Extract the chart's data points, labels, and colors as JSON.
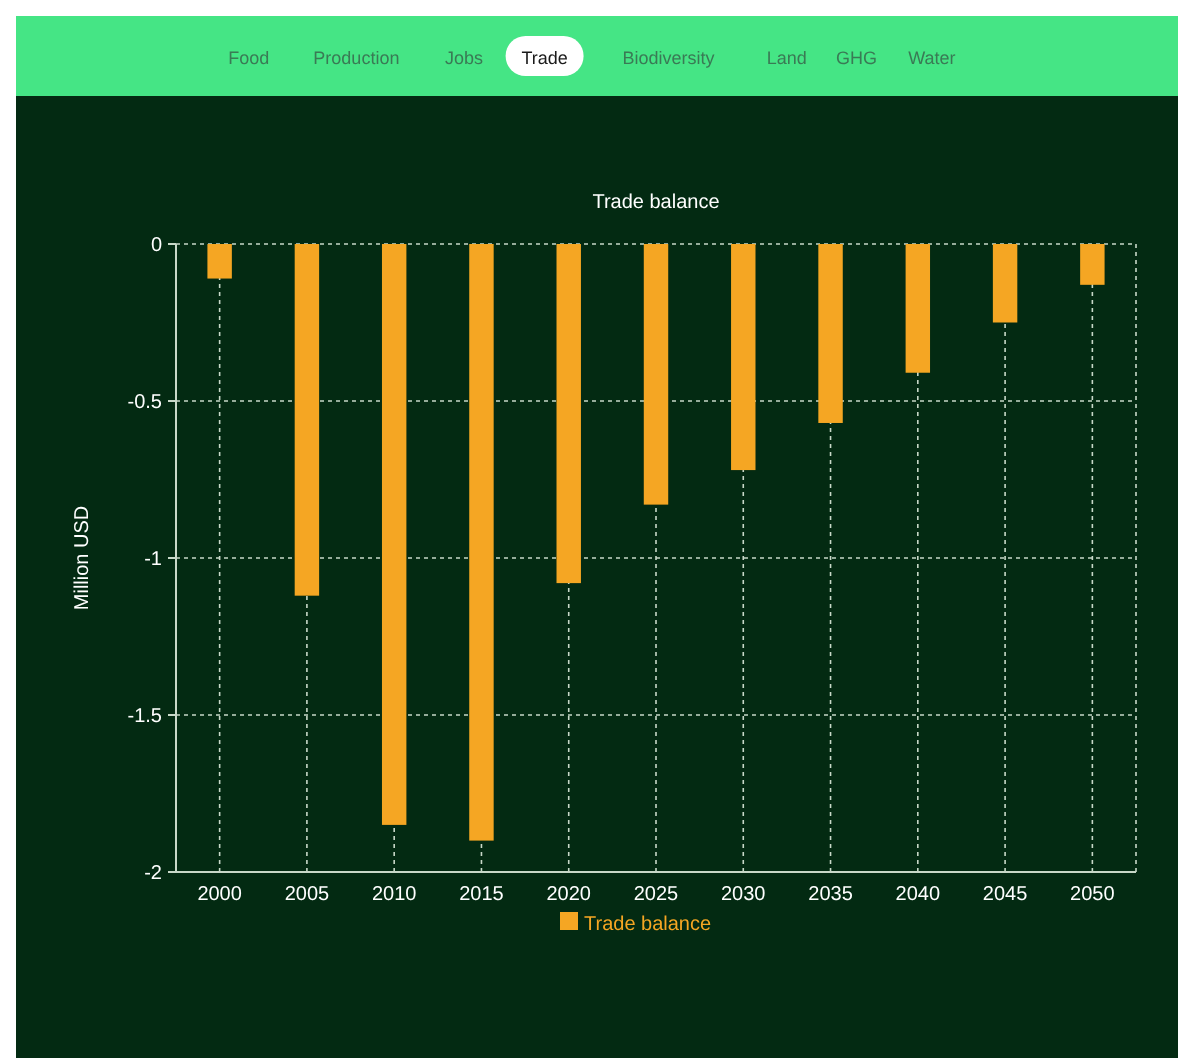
{
  "chart_data": {
    "type": "bar",
    "title": "Trade balance",
    "ylabel": "Million USD",
    "categories": [
      "2000",
      "2005",
      "2010",
      "2015",
      "2020",
      "2025",
      "2030",
      "2035",
      "2040",
      "2045",
      "2050"
    ],
    "series": [
      {
        "name": "Trade balance",
        "color": "#f5a623",
        "values": [
          -0.11,
          -1.12,
          -1.85,
          -1.9,
          -1.08,
          -0.83,
          -0.72,
          -0.57,
          -0.41,
          -0.25,
          -0.13
        ]
      }
    ],
    "ylim": [
      -2,
      0
    ],
    "yticks": [
      -2,
      -1.5,
      -1,
      -0.5,
      0
    ],
    "grid": true,
    "legend": "bottom",
    "annotations": [
      "Food",
      "Production",
      "Jobs",
      "Trade",
      "Biodiversity",
      "Land",
      "GHG",
      "Water"
    ]
  }
}
